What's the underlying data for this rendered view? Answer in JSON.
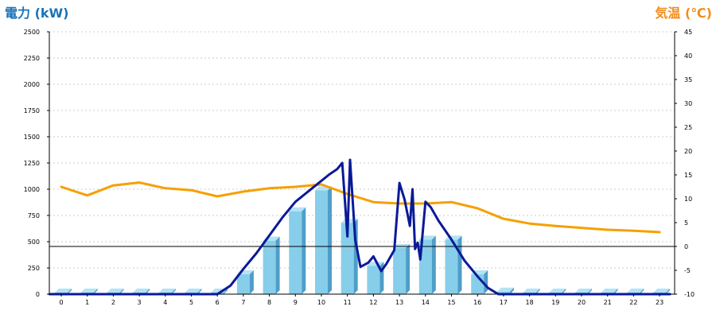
{
  "colors": {
    "power_title": "#1a73b8",
    "temp_title": "#f28c1c",
    "bar_face": "#87ceeb",
    "bar_side": "#4e9ec8",
    "bar_top": "#b5e2f5",
    "power_line": "#0a1a96",
    "temp_line": "#f5a000",
    "grid": "#bbbbbb",
    "zero_line": "#000000"
  },
  "chart_data": {
    "type": "bar+line",
    "left_axis_title": "電力 (kW)",
    "right_axis_title": "気温 (℃)",
    "x_ticks": [
      "0",
      "1",
      "2",
      "3",
      "4",
      "5",
      "6",
      "7",
      "8",
      "9",
      "10",
      "11",
      "12",
      "13",
      "14",
      "15",
      "16",
      "17",
      "18",
      "19",
      "20",
      "21",
      "22",
      "23"
    ],
    "left_ticks": [
      "0",
      "250",
      "500",
      "750",
      "1000",
      "1250",
      "1500",
      "1750",
      "2000",
      "2250",
      "2500"
    ],
    "right_ticks": [
      "-10",
      "-5",
      "0",
      "5",
      "10",
      "15",
      "20",
      "25",
      "30",
      "35",
      "40",
      "45"
    ],
    "ylim_left": [
      0,
      2500
    ],
    "ylim_right": [
      -10,
      45
    ],
    "grid": true,
    "bars": {
      "hours": [
        0,
        1,
        2,
        3,
        4,
        5,
        6,
        7,
        8,
        9,
        10,
        11,
        12,
        13,
        14,
        15,
        16,
        17,
        18,
        19,
        20,
        21,
        22,
        23
      ],
      "values": [
        15,
        15,
        15,
        15,
        15,
        15,
        15,
        190,
        510,
        790,
        990,
        680,
        270,
        440,
        520,
        520,
        190,
        25,
        15,
        15,
        15,
        15,
        15,
        15
      ]
    },
    "power_line": {
      "x": [
        6,
        6.5,
        7,
        7.5,
        8,
        8.5,
        9,
        9.5,
        10,
        10.3,
        10.6,
        10.8,
        11,
        11.1,
        11.3,
        11.5,
        11.8,
        12,
        12.3,
        12.5,
        12.8,
        13,
        13.2,
        13.4,
        13.5,
        13.6,
        13.7,
        13.8,
        14,
        14.2,
        14.5,
        15,
        15.5,
        16,
        16.4,
        16.8
      ],
      "y": [
        0,
        80,
        240,
        390,
        560,
        730,
        880,
        980,
        1080,
        1140,
        1190,
        1250,
        550,
        1280,
        520,
        260,
        300,
        360,
        220,
        290,
        420,
        1060,
        900,
        650,
        1000,
        430,
        490,
        330,
        880,
        830,
        700,
        520,
        320,
        170,
        60,
        0
      ]
    },
    "temp_line": {
      "x": [
        0,
        1,
        2,
        3,
        4,
        5,
        6,
        7,
        8,
        9,
        10,
        11,
        12,
        13,
        14,
        15,
        16,
        17,
        18,
        19,
        20,
        21,
        22,
        23
      ],
      "y": [
        12.5,
        10.7,
        12.8,
        13.4,
        12.2,
        11.8,
        10.5,
        11.5,
        12.2,
        12.5,
        13,
        11,
        9.3,
        9,
        9,
        9.3,
        8,
        5.8,
        4.8,
        4.3,
        3.9,
        3.5,
        3.3,
        3
      ]
    }
  }
}
